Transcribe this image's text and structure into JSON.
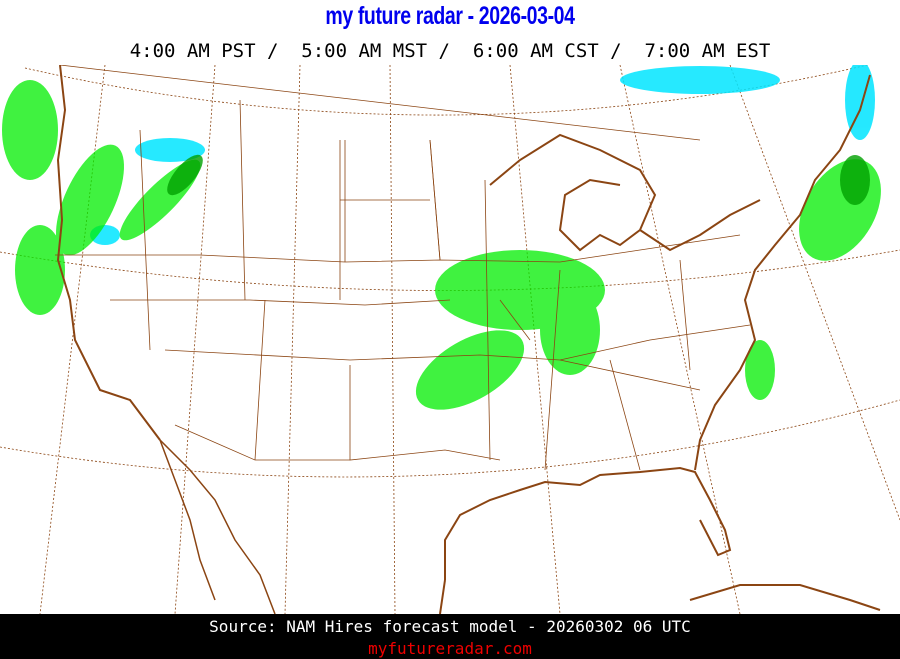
{
  "header": {
    "title": "my future radar - 2026-03-04",
    "times": "4:00 AM PST /  5:00 AM MST /  6:00 AM CST /  7:00 AM EST"
  },
  "footer": {
    "source": "Source: NAM Hires forecast model - 20260302 06 UTC",
    "site": "myfutureradar.com"
  },
  "colors": {
    "title": "#0000ee",
    "borders": "#8b4513",
    "rain_light": "#00ee00",
    "rain_medium": "#00a000",
    "snow": "#00e5ff",
    "site": "#ee0000"
  }
}
